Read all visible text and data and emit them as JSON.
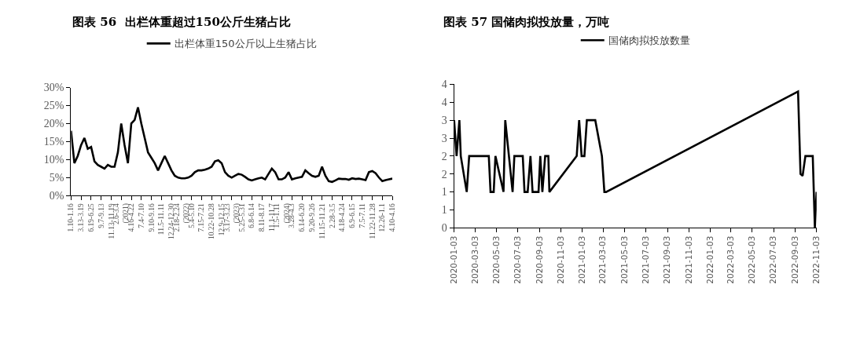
{
  "chart_data": [
    {
      "type": "line",
      "title": "图表 56  出栏体重超过150公斤生猪占比",
      "categories": [
        "1.10-1.16",
        null,
        null,
        "3.13-3.19",
        null,
        null,
        "6.19-6.25",
        null,
        null,
        "9.7-9.13",
        null,
        null,
        "11.13-11.19",
        null,
        null,
        "2.6-3.4\n(2021)",
        null,
        null,
        "4.16-4.22",
        null,
        null,
        "7.4-7.10",
        null,
        null,
        "9.10-9.16",
        null,
        null,
        "11.5-11.11",
        null,
        null,
        "12.24-12.30",
        null,
        null,
        "2.18-2.24\n(2022)",
        null,
        null,
        "5.4-5.10",
        null,
        null,
        "7.15-7.21",
        null,
        null,
        "10.22-10.28",
        null,
        null,
        "12.9-12.15",
        null,
        null,
        "3.17-3.23\n(2023)",
        null,
        null,
        "5.25-5.31",
        null,
        null,
        "6.8-6.14",
        null,
        null,
        "8.11-8.17",
        null,
        null,
        "11.1-11.7",
        null,
        null,
        "1.5-1.11\n(2024)",
        null,
        null,
        "3.28-4.3",
        null,
        null,
        "6.14-6.20",
        null,
        null,
        "9.20-9.26",
        null,
        null,
        "11.15-11.21",
        null,
        null,
        "2.28-3.5",
        null,
        null,
        "4.18-4.24",
        null,
        null,
        "6.9-6.15",
        null,
        null,
        "7.5-7.11",
        null,
        null,
        "11.22-11.28",
        null,
        null,
        "12.26-1.1",
        null,
        null,
        "4.10-4.16"
      ],
      "series": [
        {
          "name": "出栏体重150公斤以上生猪占比",
          "color": "#000000",
          "values": [
            18,
            9,
            11,
            14,
            16,
            13,
            13.5,
            9.5,
            8.5,
            8,
            7.5,
            8.5,
            8,
            8,
            12,
            20,
            14,
            9,
            20,
            21,
            24.5,
            20,
            16,
            12,
            10.5,
            9,
            7,
            9,
            11,
            9,
            7,
            5.5,
            5,
            4.8,
            4.8,
            5,
            5.5,
            6.5,
            7,
            7,
            7.2,
            7.5,
            8,
            9.5,
            9.8,
            9,
            6.5,
            5.5,
            5,
            5.5,
            6,
            5.8,
            5.2,
            4.5,
            4.2,
            4.5,
            4.8,
            5,
            4.5,
            6,
            7.5,
            6.5,
            4.5,
            4.5,
            5,
            6.5,
            4.5,
            4.8,
            5,
            5.2,
            7,
            6.2,
            5.5,
            5.2,
            5.5,
            8,
            5.5,
            4,
            3.8,
            4.2,
            4.7,
            4.6,
            4.6,
            4.4,
            4.8,
            4.6,
            4.7,
            4.5,
            4.3,
            6.5,
            6.8,
            6.2,
            5,
            4,
            4.3,
            4.5,
            4.7
          ]
        }
      ],
      "ylim": [
        0,
        30
      ],
      "yticks": [
        {
          "value": 0,
          "label": "0%"
        },
        {
          "value": 5,
          "label": "5%"
        },
        {
          "value": 10,
          "label": "10%"
        },
        {
          "value": 15,
          "label": "15%"
        },
        {
          "value": 20,
          "label": "20%"
        },
        {
          "value": 25,
          "label": "25%"
        },
        {
          "value": 30,
          "label": "30%"
        }
      ],
      "legend": "top",
      "marker": "none",
      "line_style": "solid"
    },
    {
      "type": "line",
      "title": "图表 57 国储肉拟投放量，万吨",
      "x": [
        "2020-01-03",
        "2020-01-10",
        "2020-01-18",
        "2020-01-22",
        "2020-02-08",
        "2020-02-15",
        "2020-04-11",
        "2020-04-16",
        "2020-04-25",
        "2020-04-30",
        "2020-05-23",
        "2020-05-28",
        "2020-06-18",
        "2020-06-23",
        "2020-07-17",
        "2020-07-22",
        "2020-07-31",
        "2020-08-08",
        "2020-08-14",
        "2020-08-31",
        "2020-09-05",
        "2020-09-11",
        "2020-09-19",
        "2020-09-28",
        "2020-10-01",
        "2020-12-18",
        "2020-12-25",
        "2021-01-01",
        "2021-01-09",
        "2021-01-16",
        "2021-02-09",
        "2021-02-28",
        "2021-03-07",
        "2021-03-12",
        "2022-09-11",
        "2022-09-18",
        "2022-09-24",
        "2022-10-02",
        "2022-10-23",
        "2022-10-29",
        "2022-11-03"
      ],
      "series": [
        {
          "name": "国储肉拟投放数量",
          "color": "#000000",
          "values": [
            3,
            2,
            3,
            2,
            1,
            2,
            2,
            1,
            1,
            2,
            1,
            3,
            1,
            2,
            2,
            1,
            1,
            2,
            1,
            1,
            2,
            1,
            2,
            2,
            1,
            2,
            3,
            2,
            2,
            3,
            3,
            2,
            1,
            1,
            3.8,
            1.5,
            1.45,
            2,
            2,
            0,
            1
          ]
        }
      ],
      "xlim": [
        "2020-01-03",
        "2022-11-03"
      ],
      "xticks": [
        "2020-01-03",
        "2020-03-03",
        "2020-05-03",
        "2020-07-03",
        "2020-09-03",
        "2020-11-03",
        "2021-01-03",
        "2021-03-03",
        "2021-05-03",
        "2021-07-03",
        "2021-09-03",
        "2021-11-03",
        "2022-01-03",
        "2022-03-03",
        "2022-05-03",
        "2022-07-03",
        "2022-09-03",
        "2022-11-03"
      ],
      "ylim": [
        0,
        4
      ],
      "yticks": [
        0,
        {
          "value": 0.5,
          "label": "1"
        },
        1,
        {
          "value": 1.5,
          "label": "2"
        },
        2,
        {
          "value": 2.5,
          "label": "3"
        },
        3,
        {
          "value": 3.5,
          "label": "4"
        },
        4
      ],
      "legend": "top",
      "marker": "none",
      "line_style": "solid"
    }
  ]
}
